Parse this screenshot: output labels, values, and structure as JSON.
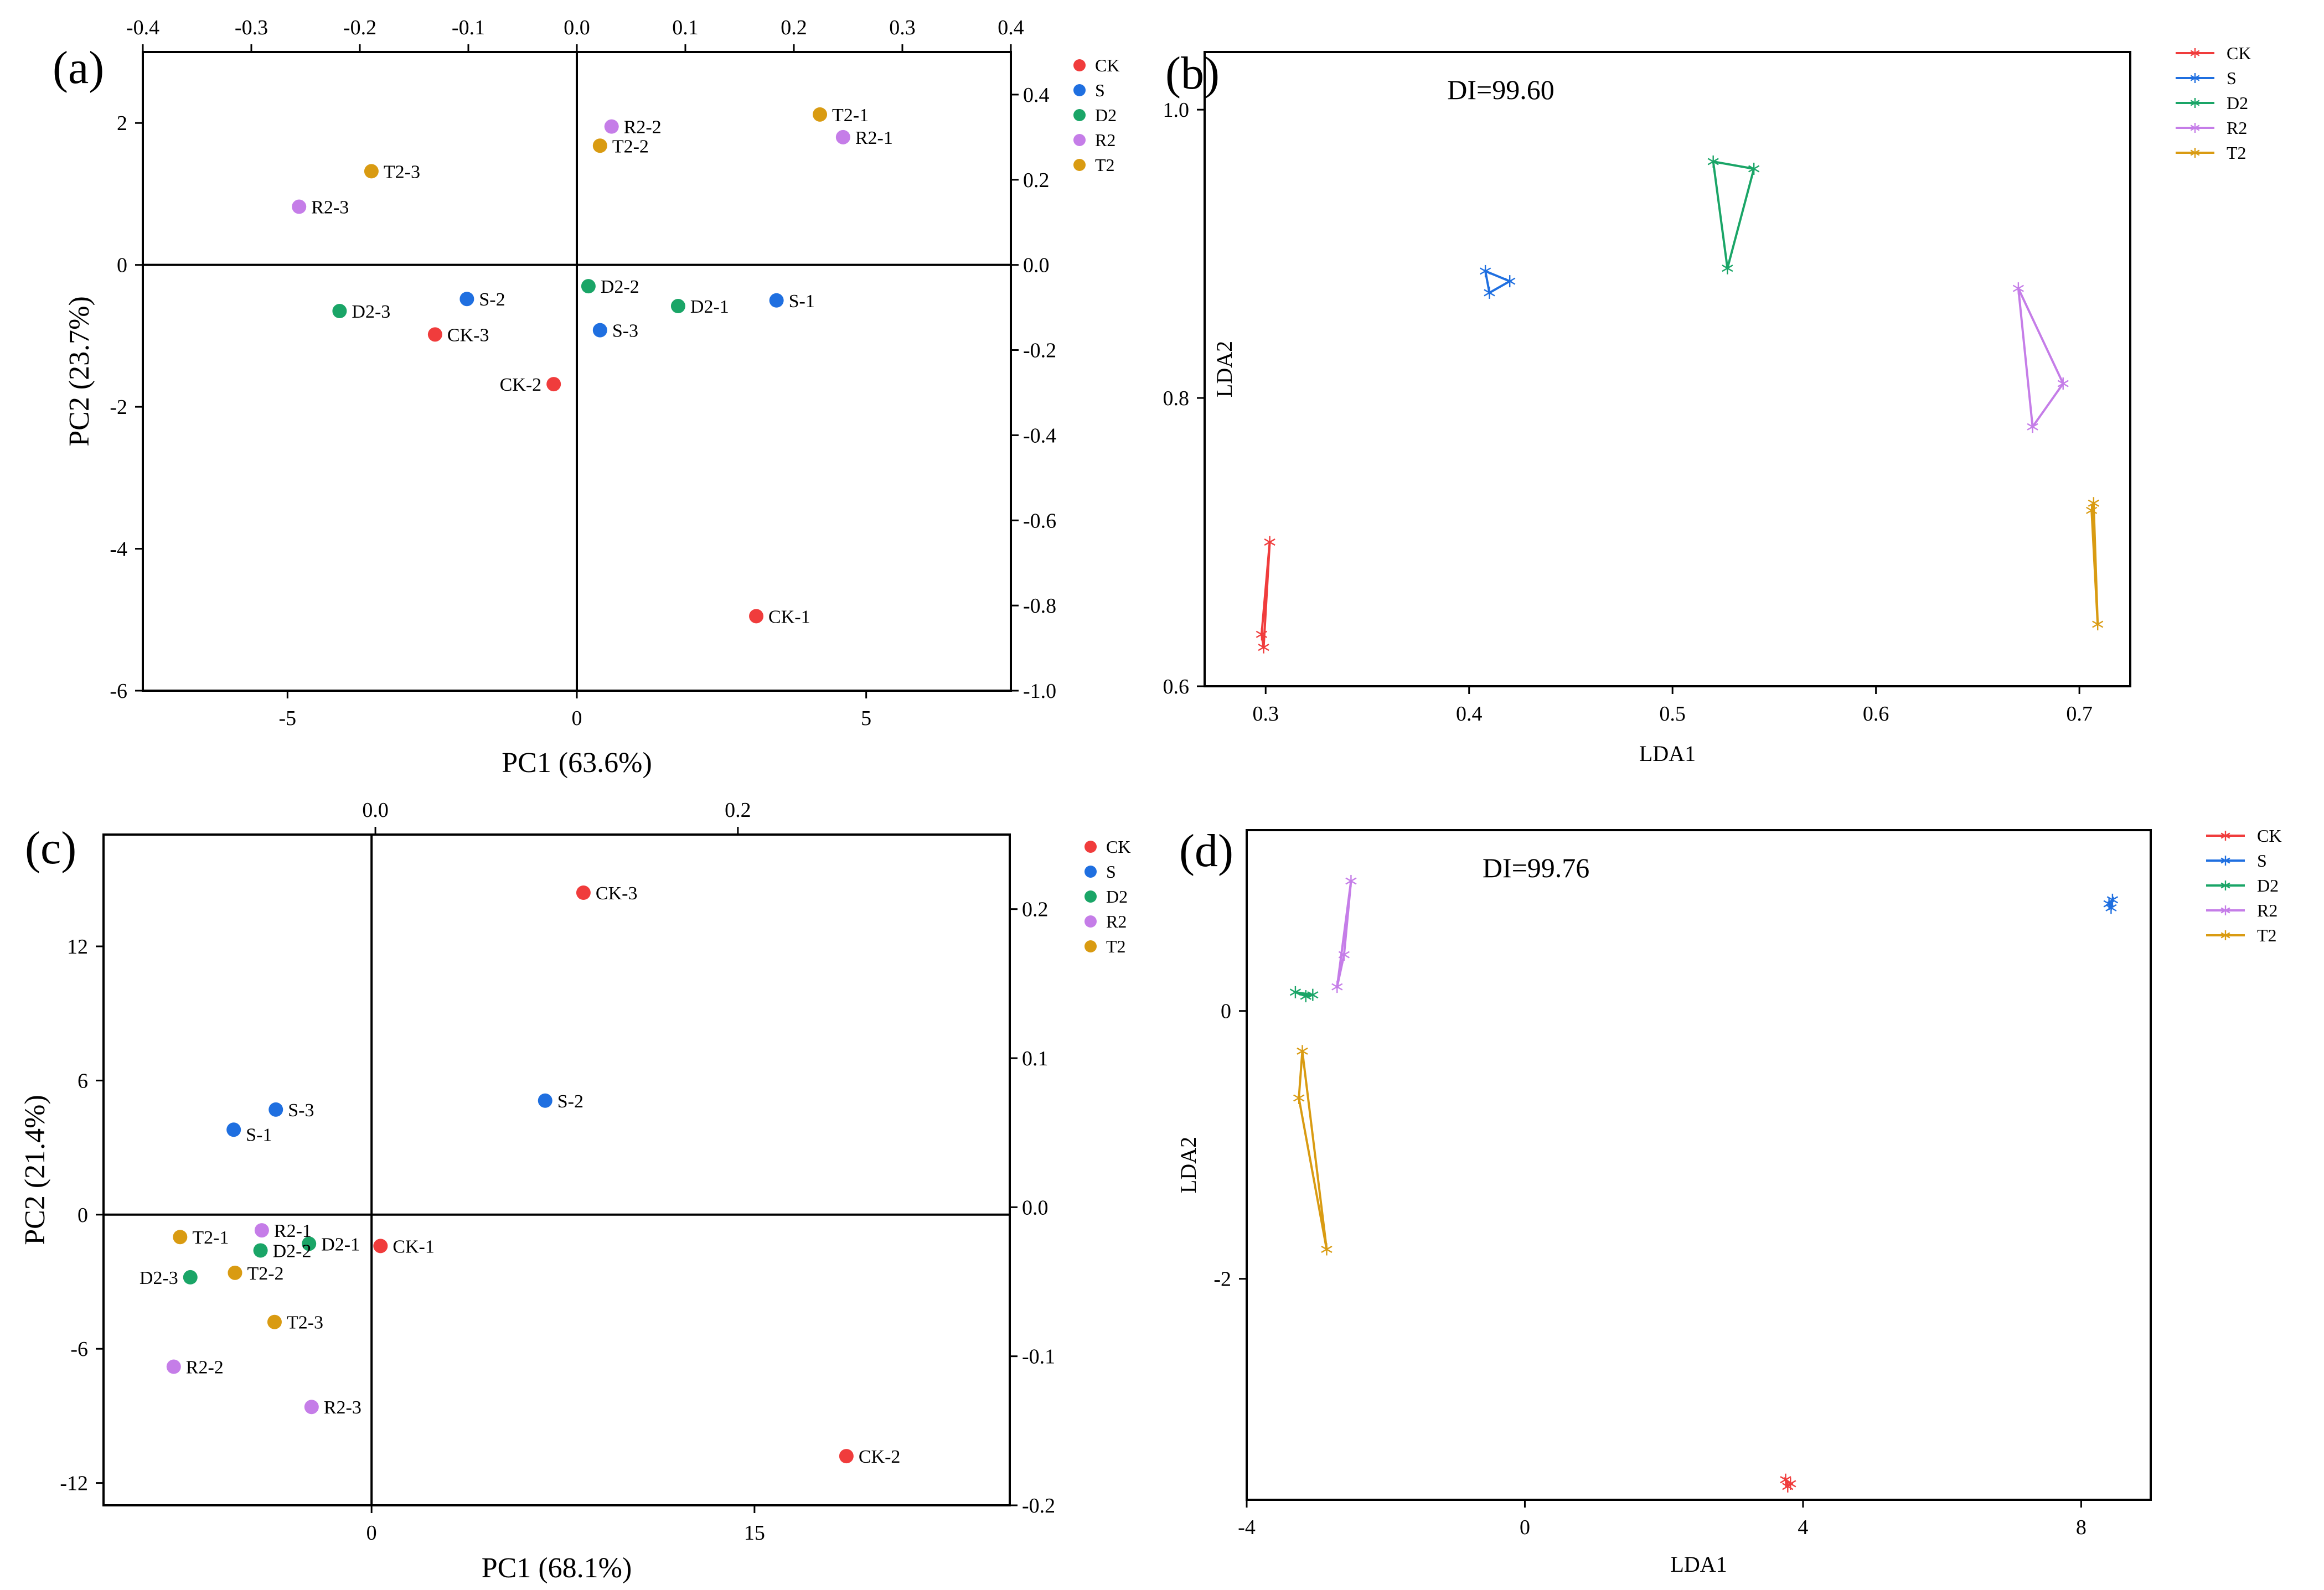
{
  "colors": {
    "CK": "#f03c3c",
    "S": "#1f6fe0",
    "D2": "#1aa567",
    "R2": "#c57de8",
    "T2": "#d99b12"
  },
  "chart_data": [
    {
      "id": "a",
      "type": "scatter",
      "panel_label": "(a)",
      "xlabel": "PC1 (63.6%)",
      "ylabel": "PC2 (23.7%)",
      "xlim": [
        -7.5,
        7.5
      ],
      "ylim": [
        -6,
        3
      ],
      "xticks": [
        -5,
        0,
        5
      ],
      "xtick_labels": [
        "-5",
        "0",
        "5"
      ],
      "yticks": [
        -6,
        -4,
        -2,
        0,
        2
      ],
      "ytick_labels": [
        "-6",
        "-4",
        "-2",
        "0",
        "2"
      ],
      "top_lim": [
        -0.4,
        0.4
      ],
      "top_ticks": [
        -0.4,
        -0.3,
        -0.2,
        -0.1,
        0.0,
        0.1,
        0.2,
        0.3,
        0.4
      ],
      "top_tick_labels": [
        "-0.4",
        "-0.3",
        "-0.2",
        "-0.1",
        "0.0",
        "0.1",
        "0.2",
        "0.3",
        "0.4"
      ],
      "right_lim": [
        -1.0,
        0.5
      ],
      "right_ticks": [
        -1.0,
        -0.8,
        -0.6,
        -0.4,
        -0.2,
        0.0,
        0.2,
        0.4
      ],
      "right_tick_labels": [
        "-1.0",
        "-0.8",
        "-0.6",
        "-0.4",
        "-0.2",
        "0.0",
        "0.2",
        "0.4"
      ],
      "legend": [
        "CK",
        "S",
        "D2",
        "R2",
        "T2"
      ],
      "points": [
        {
          "label": "CK-1",
          "group": "CK",
          "x": 3.1,
          "y": -4.95,
          "pos": "right"
        },
        {
          "label": "CK-2",
          "group": "CK",
          "x": -0.4,
          "y": -1.68,
          "pos": "left"
        },
        {
          "label": "CK-3",
          "group": "CK",
          "x": -2.45,
          "y": -0.98,
          "pos": "right"
        },
        {
          "label": "S-1",
          "group": "S",
          "x": 3.45,
          "y": -0.5,
          "pos": "right"
        },
        {
          "label": "S-2",
          "group": "S",
          "x": -1.9,
          "y": -0.48,
          "pos": "right"
        },
        {
          "label": "S-3",
          "group": "S",
          "x": 0.4,
          "y": -0.92,
          "pos": "right"
        },
        {
          "label": "D2-1",
          "group": "D2",
          "x": 1.75,
          "y": -0.58,
          "pos": "right"
        },
        {
          "label": "D2-2",
          "group": "D2",
          "x": 0.2,
          "y": -0.3,
          "pos": "right"
        },
        {
          "label": "D2-3",
          "group": "D2",
          "x": -4.1,
          "y": -0.65,
          "pos": "right"
        },
        {
          "label": "R2-1",
          "group": "R2",
          "x": 4.6,
          "y": 1.8,
          "pos": "right"
        },
        {
          "label": "R2-2",
          "group": "R2",
          "x": 0.6,
          "y": 1.95,
          "pos": "right"
        },
        {
          "label": "R2-3",
          "group": "R2",
          "x": -4.8,
          "y": 0.82,
          "pos": "right"
        },
        {
          "label": "T2-1",
          "group": "T2",
          "x": 4.2,
          "y": 2.12,
          "pos": "right"
        },
        {
          "label": "T2-2",
          "group": "T2",
          "x": 0.4,
          "y": 1.68,
          "pos": "right"
        },
        {
          "label": "T2-3",
          "group": "T2",
          "x": -3.55,
          "y": 1.32,
          "pos": "right"
        }
      ]
    },
    {
      "id": "b",
      "type": "line",
      "panel_label": "(b)",
      "annotation": "DI=99.60",
      "xlabel": "LDA1",
      "ylabel": "LDA2",
      "xlim": [
        0.27,
        0.725
      ],
      "ylim": [
        0.6,
        1.04
      ],
      "xticks": [
        0.3,
        0.4,
        0.5,
        0.6,
        0.7
      ],
      "xtick_labels": [
        "0.3",
        "0.4",
        "0.5",
        "0.6",
        "0.7"
      ],
      "yticks": [
        0.6,
        0.8,
        1.0
      ],
      "ytick_labels": [
        "0.6",
        "0.8",
        "1.0"
      ],
      "legend": [
        "CK",
        "S",
        "D2",
        "R2",
        "T2"
      ],
      "series": [
        {
          "name": "CK",
          "points": [
            [
              0.298,
              0.636
            ],
            [
              0.302,
              0.7
            ],
            [
              0.299,
              0.627
            ]
          ]
        },
        {
          "name": "S",
          "points": [
            [
              0.408,
              0.888
            ],
            [
              0.42,
              0.881
            ],
            [
              0.41,
              0.873
            ]
          ]
        },
        {
          "name": "D2",
          "points": [
            [
              0.52,
              0.964
            ],
            [
              0.54,
              0.959
            ],
            [
              0.527,
              0.89
            ]
          ]
        },
        {
          "name": "R2",
          "points": [
            [
              0.67,
              0.876
            ],
            [
              0.692,
              0.81
            ],
            [
              0.677,
              0.78
            ]
          ]
        },
        {
          "name": "T2",
          "points": [
            [
              0.706,
              0.722
            ],
            [
              0.707,
              0.727
            ],
            [
              0.709,
              0.643
            ]
          ]
        }
      ]
    },
    {
      "id": "c",
      "type": "scatter",
      "panel_label": "(c)",
      "xlabel": "PC1 (68.1%)",
      "ylabel": "PC2 (21.4%)",
      "xlim": [
        -10.5,
        25
      ],
      "ylim": [
        -13,
        17
      ],
      "xticks": [
        0,
        15
      ],
      "xtick_labels": [
        "0",
        "15"
      ],
      "yticks": [
        -12,
        -6,
        0,
        6,
        12
      ],
      "ytick_labels": [
        "-12",
        "-6",
        "0",
        "6",
        "12"
      ],
      "top_lim": [
        -0.15,
        0.35
      ],
      "top_ticks": [
        0.0,
        0.2
      ],
      "top_tick_labels": [
        "0.0",
        "0.2"
      ],
      "right_lim": [
        -0.2,
        0.25
      ],
      "right_ticks": [
        -0.2,
        -0.1,
        0.0,
        0.1,
        0.2
      ],
      "right_tick_labels": [
        "-0.2",
        "-0.1",
        "0.0",
        "0.1",
        "0.2"
      ],
      "legend": [
        "CK",
        "S",
        "D2",
        "R2",
        "T2"
      ],
      "points": [
        {
          "label": "CK-1",
          "group": "CK",
          "x": 0.35,
          "y": -1.4,
          "pos": "right"
        },
        {
          "label": "CK-2",
          "group": "CK",
          "x": 18.6,
          "y": -10.8,
          "pos": "right"
        },
        {
          "label": "CK-3",
          "group": "CK",
          "x": 8.3,
          "y": 14.4,
          "pos": "right"
        },
        {
          "label": "S-1",
          "group": "S",
          "x": -5.4,
          "y": 3.8,
          "pos": "below-right"
        },
        {
          "label": "S-2",
          "group": "S",
          "x": 6.8,
          "y": 5.1,
          "pos": "right"
        },
        {
          "label": "S-3",
          "group": "S",
          "x": -3.75,
          "y": 4.7,
          "pos": "right"
        },
        {
          "label": "D2-1",
          "group": "D2",
          "x": -2.45,
          "y": -1.3,
          "pos": "right"
        },
        {
          "label": "D2-2",
          "group": "D2",
          "x": -4.35,
          "y": -1.6,
          "pos": "right"
        },
        {
          "label": "D2-3",
          "group": "D2",
          "x": -7.1,
          "y": -2.8,
          "pos": "left"
        },
        {
          "label": "R2-1",
          "group": "R2",
          "x": -4.3,
          "y": -0.7,
          "pos": "right"
        },
        {
          "label": "R2-2",
          "group": "R2",
          "x": -7.75,
          "y": -6.8,
          "pos": "right"
        },
        {
          "label": "R2-3",
          "group": "R2",
          "x": -2.35,
          "y": -8.6,
          "pos": "right"
        },
        {
          "label": "T2-1",
          "group": "T2",
          "x": -7.5,
          "y": -1.0,
          "pos": "right"
        },
        {
          "label": "T2-2",
          "group": "T2",
          "x": -5.35,
          "y": -2.6,
          "pos": "right"
        },
        {
          "label": "T2-3",
          "group": "T2",
          "x": -3.8,
          "y": -4.8,
          "pos": "right"
        }
      ]
    },
    {
      "id": "d",
      "type": "line",
      "panel_label": "(d)",
      "annotation": "DI=99.76",
      "xlabel": "LDA1",
      "ylabel": "LDA2",
      "xlim": [
        -4.0,
        9.0
      ],
      "ylim": [
        -3.65,
        1.35
      ],
      "xticks": [
        -4,
        0,
        4,
        8
      ],
      "xtick_labels": [
        "-4",
        "0",
        "4",
        "8"
      ],
      "yticks": [
        -2,
        0
      ],
      "ytick_labels": [
        "-2",
        "0"
      ],
      "legend": [
        "CK",
        "S",
        "D2",
        "R2",
        "T2"
      ],
      "series": [
        {
          "name": "CK",
          "points": [
            [
              3.75,
              -3.5
            ],
            [
              3.82,
              -3.53
            ],
            [
              3.78,
              -3.55
            ]
          ]
        },
        {
          "name": "S",
          "points": [
            [
              8.4,
              0.8
            ],
            [
              8.45,
              0.83
            ],
            [
              8.43,
              0.77
            ]
          ]
        },
        {
          "name": "D2",
          "points": [
            [
              -3.3,
              0.14
            ],
            [
              -3.15,
              0.11
            ],
            [
              -3.05,
              0.12
            ]
          ]
        },
        {
          "name": "R2",
          "points": [
            [
              -2.7,
              0.18
            ],
            [
              -2.6,
              0.42
            ],
            [
              -2.5,
              0.97
            ]
          ]
        },
        {
          "name": "T2",
          "points": [
            [
              -3.2,
              -0.3
            ],
            [
              -3.25,
              -0.65
            ],
            [
              -2.85,
              -1.78
            ]
          ]
        }
      ]
    }
  ]
}
